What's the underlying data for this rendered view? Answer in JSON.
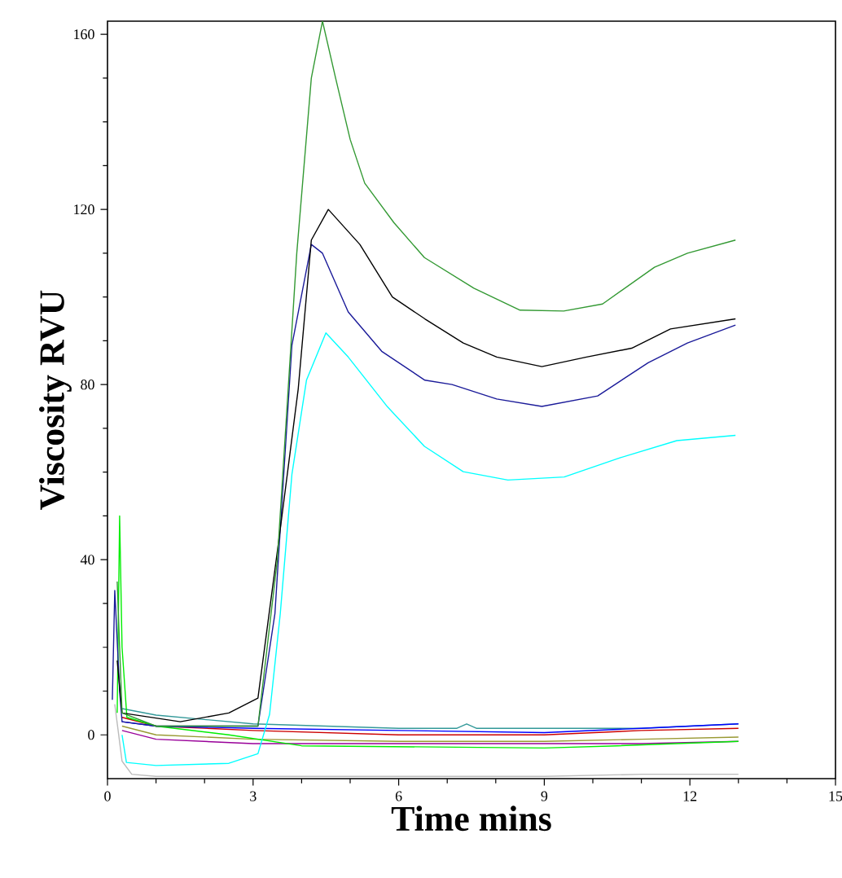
{
  "chart_data": {
    "type": "line",
    "xlabel": "Time mins",
    "ylabel": "Viscosity RVU",
    "xlim": [
      0,
      15
    ],
    "ylim": [
      -10,
      163
    ],
    "xticks": [
      0,
      3,
      6,
      9,
      12,
      15
    ],
    "yticks": [
      0,
      40,
      80,
      120,
      160
    ],
    "marker": "none",
    "line_style": "solid",
    "series": [
      {
        "color": "#bbbbbb",
        "x": [
          0.15,
          0.3,
          0.5,
          1,
          3,
          6,
          9,
          11,
          13
        ],
        "values": [
          7,
          -6,
          -9,
          -9.5,
          -9.5,
          -9.5,
          -9.5,
          -9,
          -9
        ]
      },
      {
        "color": "#990099",
        "x": [
          0.3,
          1,
          3,
          6,
          9,
          11,
          13
        ],
        "values": [
          1,
          -1,
          -2,
          -2,
          -2,
          -2,
          -1.5
        ]
      },
      {
        "color": "#999933",
        "x": [
          0.3,
          1,
          3,
          6,
          9,
          11,
          13
        ],
        "values": [
          2,
          0,
          -1,
          -1.5,
          -1.5,
          -1,
          -0.5
        ]
      },
      {
        "color": "#cc0000",
        "x": [
          0.3,
          1,
          3,
          6,
          9,
          11,
          13
        ],
        "values": [
          4,
          2,
          1,
          0,
          0,
          1,
          1.5
        ]
      },
      {
        "color": "#339999",
        "x": [
          0.3,
          1,
          3,
          6,
          7.2,
          7.4,
          7.6,
          9,
          11,
          13
        ],
        "values": [
          6,
          4.5,
          2.5,
          1.5,
          1.5,
          2.5,
          1.5,
          1.5,
          1.5,
          2.5
        ]
      },
      {
        "color": "#0000ff",
        "x": [
          0.3,
          1,
          3,
          6,
          9,
          11,
          13
        ],
        "values": [
          3,
          2,
          1.5,
          1,
          0.5,
          1.5,
          2.5
        ]
      },
      {
        "color": "#00ee00",
        "x": [
          0.2,
          0.25,
          0.3,
          0.4,
          1,
          2.5,
          4,
          9,
          10.5,
          13
        ],
        "values": [
          5,
          50,
          20,
          4,
          2,
          0,
          -2.5,
          -3,
          -2.5,
          -1.5
        ]
      },
      {
        "color": "#00ffff",
        "x": [
          0.3,
          0.39,
          1,
          2.5,
          3.1,
          3.34,
          3.56,
          3.8,
          4.1,
          4.5,
          4.96,
          5.77,
          6.53,
          7.33,
          8.25,
          9.41,
          10.57,
          11.73,
          12.94
        ],
        "values": [
          0,
          -6.3,
          -7,
          -6.5,
          -4.3,
          4.7,
          27.7,
          59.5,
          81,
          91.8,
          86.3,
          74.9,
          65.9,
          60.1,
          58.2,
          58.9,
          63.3,
          67.2,
          68.4
        ]
      },
      {
        "color": "#1a1a99",
        "x": [
          0.1,
          0.15,
          0.25,
          0.3,
          1,
          3.1,
          3.45,
          3.8,
          4.2,
          4.43,
          4.96,
          5.65,
          6.54,
          7.1,
          8.02,
          8.95,
          10.1,
          11.14,
          11.95,
          12.94
        ],
        "values": [
          8,
          33,
          10,
          3,
          2,
          2,
          27.7,
          89,
          112,
          110,
          96.6,
          87.6,
          81,
          80,
          76.7,
          75,
          77.4,
          85,
          89.5,
          93.6
        ]
      },
      {
        "color": "#000000",
        "x": [
          0.2,
          0.3,
          1.5,
          2.5,
          3.1,
          3.56,
          3.93,
          4.2,
          4.55,
          5.2,
          5.87,
          6.54,
          7.33,
          8.02,
          8.95,
          9.87,
          10.8,
          11.6,
          12.94
        ],
        "values": [
          17,
          5,
          3,
          5,
          8.4,
          47,
          79,
          113,
          120,
          112,
          100,
          95,
          89.5,
          86.3,
          84.1,
          86.3,
          88.3,
          92.7,
          95
        ]
      },
      {
        "color": "#339933",
        "x": [
          0.2,
          0.3,
          1,
          3.1,
          3.5,
          3.9,
          4.2,
          4.43,
          4.7,
          5.0,
          5.3,
          5.9,
          6.53,
          7.55,
          8.5,
          9.4,
          10.2,
          11.27,
          11.95,
          12.94
        ],
        "values": [
          35,
          5,
          2,
          2,
          40,
          110,
          150,
          163,
          150,
          136,
          126,
          117,
          109,
          102,
          97,
          96.8,
          98.4,
          106.8,
          110,
          113
        ]
      }
    ]
  }
}
